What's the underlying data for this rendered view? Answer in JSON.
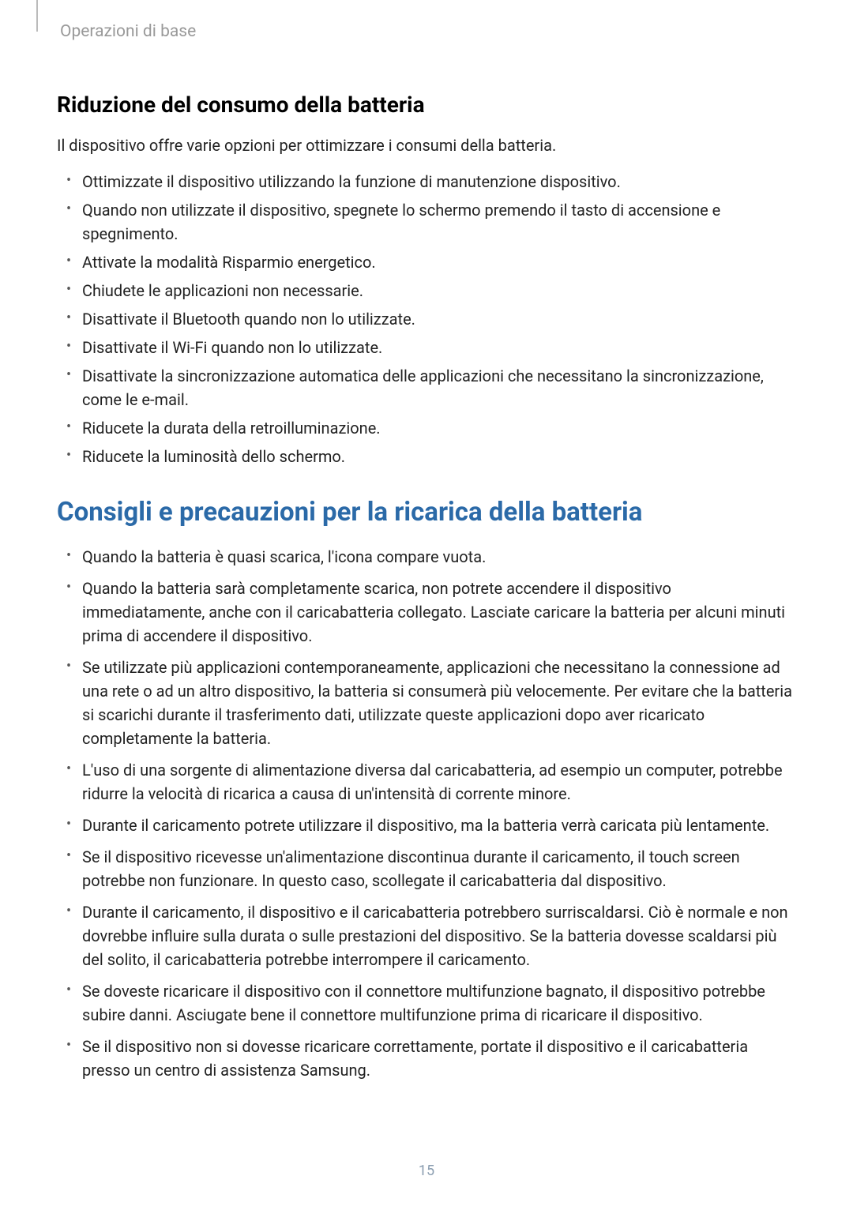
{
  "breadcrumb": "Operazioni di base",
  "section1": {
    "heading": "Riduzione del consumo della batteria",
    "intro": "Il dispositivo offre varie opzioni per ottimizzare i consumi della batteria.",
    "items": [
      "Ottimizzate il dispositivo utilizzando la funzione di manutenzione dispositivo.",
      "Quando non utilizzate il dispositivo, spegnete lo schermo premendo il tasto di accensione e spegnimento.",
      "Attivate la modalità Risparmio energetico.",
      "Chiudete le applicazioni non necessarie.",
      "Disattivate il Bluetooth quando non lo utilizzate.",
      "Disattivate il Wi-Fi quando non lo utilizzate.",
      "Disattivate la sincronizzazione automatica delle applicazioni che necessitano la sincronizzazione, come le e-mail.",
      "Riducete la durata della retroilluminazione.",
      "Riducete la luminosità dello schermo."
    ]
  },
  "section2": {
    "heading": "Consigli e precauzioni per la ricarica della batteria",
    "items": [
      "Quando la batteria è quasi scarica, l'icona compare vuota.",
      "Quando la batteria sarà completamente scarica, non potrete accendere il dispositivo immediatamente, anche con il caricabatteria collegato. Lasciate caricare la batteria per alcuni minuti prima di accendere il dispositivo.",
      "Se utilizzate più applicazioni contemporaneamente, applicazioni che necessitano la connessione ad una rete o ad un altro dispositivo, la batteria si consumerà più velocemente. Per evitare che la batteria si scarichi durante il trasferimento dati, utilizzate queste applicazioni dopo aver ricaricato completamente la batteria.",
      "L'uso di una sorgente di alimentazione diversa dal caricabatteria, ad esempio un computer, potrebbe ridurre la velocità di ricarica a causa di un'intensità di corrente minore.",
      "Durante il caricamento potrete utilizzare il dispositivo, ma la batteria verrà caricata più lentamente.",
      "Se il dispositivo ricevesse un'alimentazione discontinua durante il caricamento, il touch screen potrebbe non funzionare. In questo caso, scollegate il caricabatteria dal dispositivo.",
      "Durante il caricamento, il dispositivo e il caricabatteria potrebbero surriscaldarsi. Ciò è normale e non dovrebbe influire sulla durata o sulle prestazioni del dispositivo. Se la batteria dovesse scaldarsi più del solito, il caricabatteria potrebbe interrompere il caricamento.",
      "Se doveste ricaricare il dispositivo con il connettore multifunzione bagnato, il dispositivo potrebbe subire danni. Asciugate bene il connettore multifunzione prima di ricaricare il dispositivo.",
      "Se il dispositivo non si dovesse ricaricare correttamente, portate il dispositivo e il caricabatteria presso un centro di assistenza Samsung."
    ]
  },
  "pageNumber": "15",
  "colors": {
    "accent": "#2b6aa8",
    "text": "#222222",
    "breadcrumb": "#999999",
    "pageNumber": "#8a9db0",
    "background": "#ffffff"
  }
}
